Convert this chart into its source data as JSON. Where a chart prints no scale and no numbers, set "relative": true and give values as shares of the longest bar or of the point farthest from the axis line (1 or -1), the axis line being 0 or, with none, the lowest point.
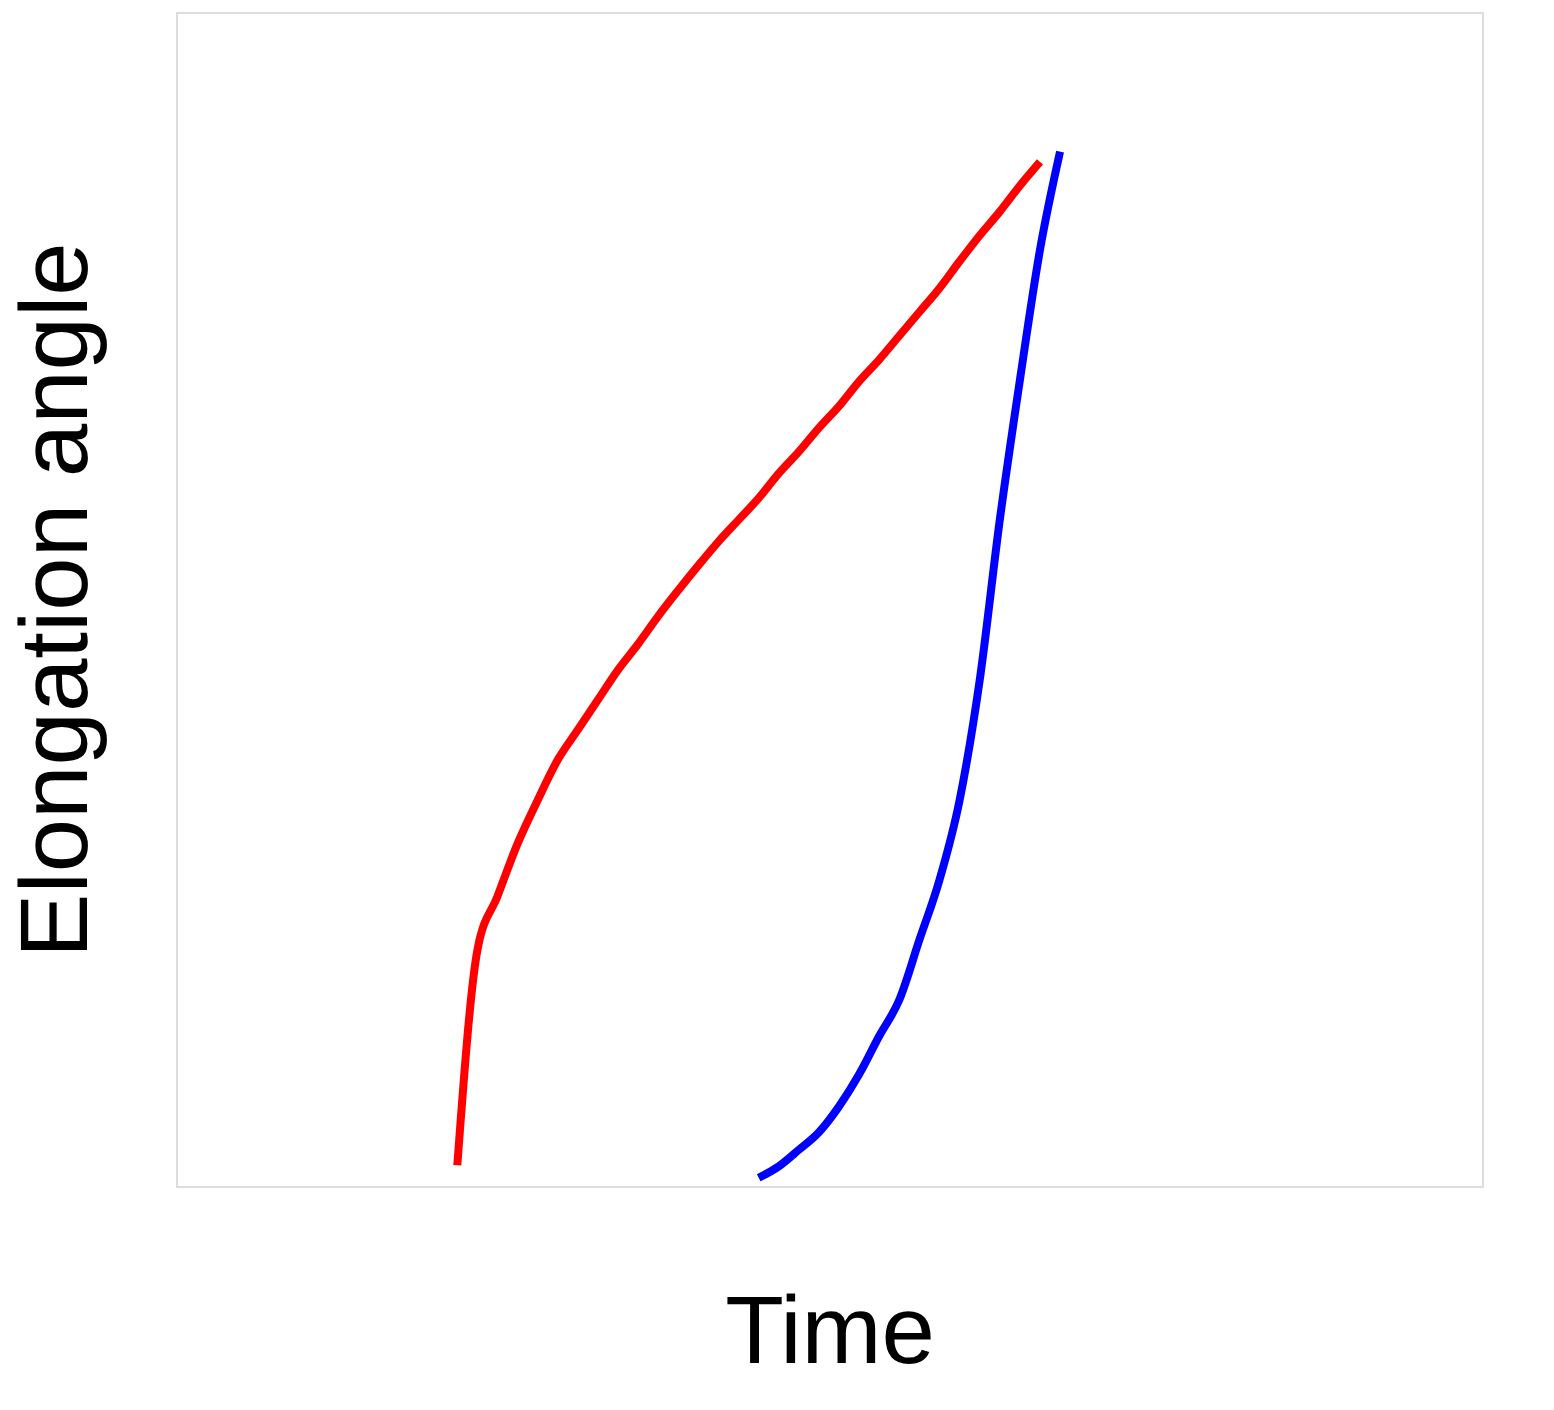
{
  "chart_data": {
    "type": "line",
    "relative": true,
    "xlabel": "Time",
    "ylabel": "Elongation angle",
    "grid": false,
    "legend": false,
    "categories": [
      null,
      null,
      null,
      null,
      null,
      null,
      null,
      null,
      null,
      null,
      null,
      null,
      null,
      null,
      null,
      null,
      null,
      null,
      null,
      null,
      null,
      null,
      null,
      null,
      null,
      null,
      null,
      null,
      null,
      null,
      null,
      null,
      null,
      null,
      null,
      null,
      null,
      null,
      null,
      null,
      null,
      null,
      null,
      null,
      null,
      null,
      null,
      null,
      null,
      null,
      null,
      null,
      null,
      null,
      null,
      null,
      null,
      null,
      null,
      null,
      null,
      null,
      null,
      null,
      null,
      null
    ],
    "series": [
      {
        "color": "#ff0000",
        "values": [
          null,
          null,
          null,
          null,
          null,
          null,
          null,
          null,
          null,
          null,
          null,
          null,
          null,
          null,
          0.02,
          0.228,
          0.28,
          0.331,
          0.373,
          0.412,
          0.441,
          0.47,
          0.499,
          0.524,
          0.551,
          0.576,
          0.6,
          0.623,
          0.644,
          0.665,
          0.689,
          0.71,
          0.733,
          0.754,
          0.778,
          0.799,
          0.822,
          0.845,
          0.868,
          0.894,
          0.919,
          0.942,
          0.967,
          0.99,
          null,
          null,
          null,
          null,
          null,
          null,
          null,
          null,
          null,
          null,
          null,
          null,
          null,
          null,
          null,
          null,
          null,
          null,
          null,
          null,
          null,
          null
        ]
      },
      {
        "color": "#0000ff",
        "values": [
          null,
          null,
          null,
          null,
          null,
          null,
          null,
          null,
          null,
          null,
          null,
          null,
          null,
          null,
          null,
          null,
          null,
          null,
          null,
          null,
          null,
          null,
          null,
          null,
          null,
          null,
          null,
          null,
          null,
          0.008,
          0.019,
          0.035,
          0.052,
          0.077,
          0.108,
          0.145,
          0.18,
          0.238,
          0.296,
          0.373,
          0.489,
          0.644,
          0.779,
          0.905,
          1.0,
          null,
          null,
          null,
          null,
          null,
          null,
          null,
          null,
          null,
          null,
          null,
          null,
          null,
          null,
          null,
          null,
          null,
          null,
          null,
          null,
          null
        ]
      }
    ]
  }
}
